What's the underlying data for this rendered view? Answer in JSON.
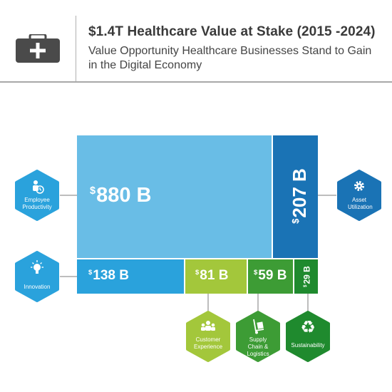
{
  "header": {
    "title": "$1.4T Healthcare Value at Stake (2015 -2024)",
    "subtitle": "Value Opportunity Healthcare Businesses Stand to Gain in the Digital Economy",
    "icon": "medical-kit-icon"
  },
  "chart_data": {
    "type": "treemap",
    "unit": "$B",
    "total_label": "$1.4T",
    "segments": [
      {
        "name": "Employee Productivity",
        "value": 880,
        "value_label": "880 B",
        "color": "#69bde6",
        "icon": "employee-productivity-icon"
      },
      {
        "name": "Asset Utilization",
        "value": 207,
        "value_label": "207 B",
        "color": "#1a73b5",
        "icon": "gear-settings-icon"
      },
      {
        "name": "Innovation",
        "value": 138,
        "value_label": "138 B",
        "color": "#2aa2dc",
        "icon": "lightbulb-icon"
      },
      {
        "name": "Customer Experience",
        "value": 81,
        "value_label": "81 B",
        "color": "#a3c73b",
        "icon": "people-group-icon"
      },
      {
        "name": "Supply Chain & Logistics",
        "value": 59,
        "value_label": "59 B",
        "color": "#3d9c35",
        "icon": "hand-truck-icon"
      },
      {
        "name": "Sustainability",
        "value": 29,
        "value_label": "29 B",
        "color": "#1f8a2e",
        "icon": "recycle-icon"
      }
    ]
  }
}
